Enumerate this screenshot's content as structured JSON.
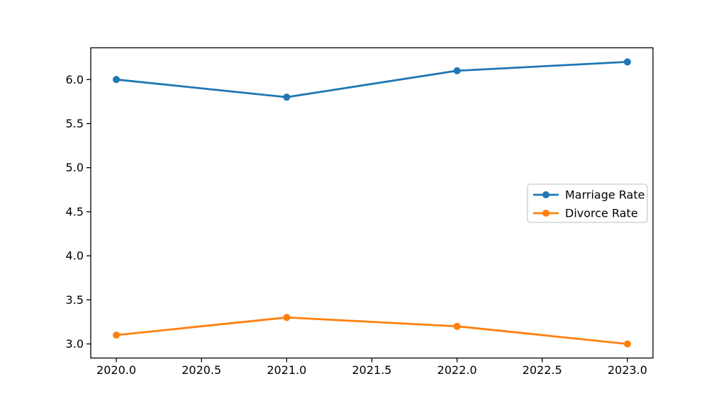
{
  "chart_data": {
    "type": "line",
    "x": [
      2020,
      2021,
      2022,
      2023
    ],
    "series": [
      {
        "name": "Marriage Rate",
        "color": "#1f77b4",
        "marker": "circle",
        "values": [
          6.0,
          5.8,
          6.1,
          6.2
        ]
      },
      {
        "name": "Divorce Rate",
        "color": "#ff7f0e",
        "marker": "circle",
        "values": [
          3.1,
          3.3,
          3.2,
          3.0
        ]
      }
    ],
    "title": "",
    "xlabel": "",
    "ylabel": "",
    "xlim": [
      2019.85,
      2023.15
    ],
    "ylim": [
      2.84,
      6.36
    ],
    "xticks": {
      "values": [
        2020.0,
        2020.5,
        2021.0,
        2021.5,
        2022.0,
        2022.5,
        2023.0
      ],
      "labels": [
        "2020.0",
        "2020.5",
        "2021.0",
        "2021.5",
        "2022.0",
        "2022.5",
        "2023.0"
      ]
    },
    "yticks": {
      "values": [
        3.0,
        3.5,
        4.0,
        4.5,
        5.0,
        5.5,
        6.0
      ],
      "labels": [
        "3.0",
        "3.5",
        "4.0",
        "4.5",
        "5.0",
        "5.5",
        "6.0"
      ]
    },
    "grid": false,
    "legend": {
      "position": "center-right",
      "entries": [
        "Marriage Rate",
        "Divorce Rate"
      ]
    }
  },
  "colors": {
    "background": "#ffffff",
    "axis": "#000000",
    "tick_text": "#000000",
    "legend_border": "#cccccc",
    "legend_background": "#ffffff"
  }
}
